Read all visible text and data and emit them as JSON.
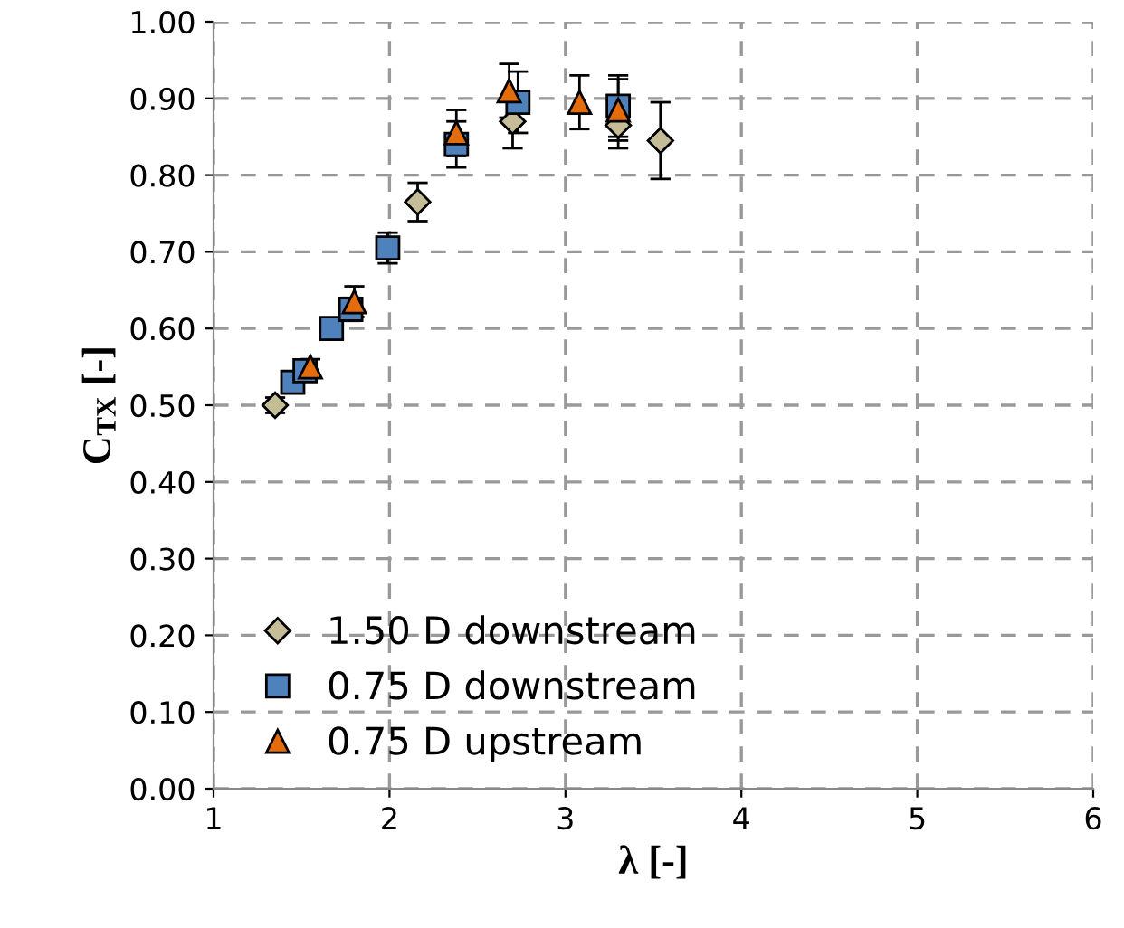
{
  "chart_data": {
    "type": "scatter",
    "xlabel": "λ [-]",
    "ylabel": "C$_{TX}$ [-]",
    "xlim": [
      1,
      6
    ],
    "xticks": [
      1,
      2,
      3,
      4,
      5,
      6
    ],
    "ylim": [
      0,
      1
    ],
    "yticks": [
      {
        "value": 0,
        "label": "0.00"
      },
      {
        "value": 0.1,
        "label": "0.10"
      },
      {
        "value": 0.2,
        "label": "0.20"
      },
      {
        "value": 0.3,
        "label": "0.30"
      },
      {
        "value": 0.4,
        "label": "0.40"
      },
      {
        "value": 0.5,
        "label": "0.50"
      },
      {
        "value": 0.6,
        "label": "0.60"
      },
      {
        "value": 0.7,
        "label": "0.70"
      },
      {
        "value": 0.8,
        "label": "0.80"
      },
      {
        "value": 0.9,
        "label": "0.90"
      },
      {
        "value": 1,
        "label": "1.00"
      }
    ],
    "grid": true,
    "legend": "bottom left",
    "series": [
      {
        "name": "1.50 D downstream",
        "color": "#c4bd97",
        "marker": "diamond",
        "x": [
          1.35,
          1.55,
          2.16,
          2.38,
          2.7,
          3.3,
          3.54
        ],
        "values": [
          0.5,
          null,
          0.765,
          null,
          0.87,
          0.865,
          0.845
        ],
        "errors": [
          0.01,
          null,
          0.025,
          null,
          0.035,
          0.03,
          0.05
        ]
      },
      {
        "name": "0.75 D downstream",
        "color": "#4f81bd",
        "marker": "square",
        "x": [
          1.45,
          1.52,
          1.67,
          1.78,
          1.99,
          2.38,
          2.73,
          3.3
        ],
        "values": [
          0.53,
          0.545,
          0.6,
          0.625,
          0.705,
          0.84,
          0.895,
          0.89
        ],
        "errors": [
          0.01,
          0.01,
          0.01,
          0.015,
          0.02,
          0.03,
          0.04,
          0.04
        ]
      },
      {
        "name": "0.75 D upstream",
        "color": "#e46c0a",
        "marker": "triangle",
        "x": [
          1.55,
          1.8,
          2.38,
          2.68,
          3.08,
          3.3
        ],
        "values": [
          0.55,
          0.635,
          0.855,
          0.91,
          0.895,
          0.885
        ],
        "errors": [
          0.01,
          0.02,
          0.03,
          0.035,
          0.035,
          0.04
        ]
      }
    ]
  }
}
